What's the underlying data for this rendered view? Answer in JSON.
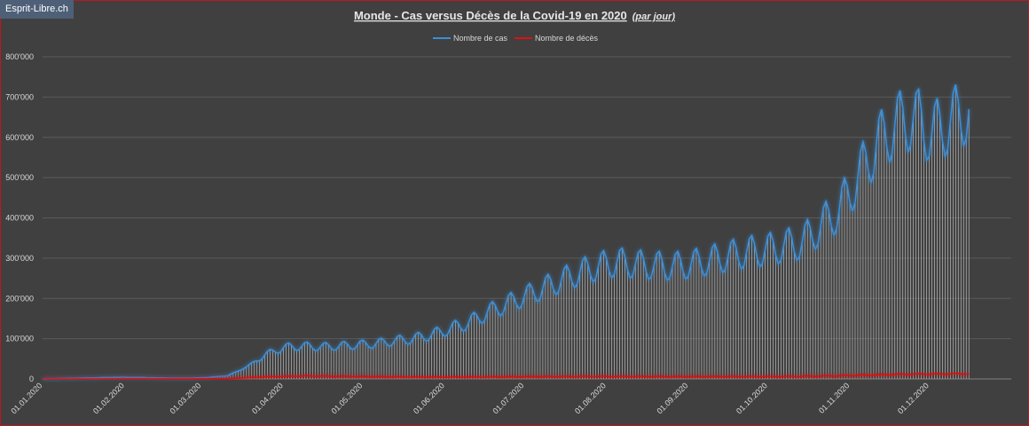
{
  "brand": {
    "label": "Esprit-Libre.ch"
  },
  "colors": {
    "background": "#404040",
    "frame": "#c0161c",
    "cases": "#3a8fd9",
    "deaths": "#e01010",
    "gridline": "#5a5a5a",
    "text": "#d9d9d9",
    "drop_lines": "#bfbfbf"
  },
  "chart_data": {
    "type": "line",
    "title": "Monde - Cas versus Décès de la Covid-19 en 2020",
    "title_note": "(par jour)",
    "xlabel": "",
    "ylabel": "",
    "ylim": [
      0,
      800000
    ],
    "y_ticks": [
      0,
      100000,
      200000,
      300000,
      400000,
      500000,
      600000,
      700000,
      800000
    ],
    "y_tick_labels": [
      "0",
      "100'000",
      "200'000",
      "300'000",
      "400'000",
      "500'000",
      "600'000",
      "700'000",
      "800'000"
    ],
    "x_ticks": [
      {
        "day": 0,
        "label": "01.01.2020"
      },
      {
        "day": 31,
        "label": "01.02.2020"
      },
      {
        "day": 60,
        "label": "01.03.2020"
      },
      {
        "day": 91,
        "label": "01.04.2020"
      },
      {
        "day": 121,
        "label": "01.05.2020"
      },
      {
        "day": 152,
        "label": "01.06.2020"
      },
      {
        "day": 182,
        "label": "01.07.2020"
      },
      {
        "day": 213,
        "label": "01.08.2020"
      },
      {
        "day": 244,
        "label": "01.09.2020"
      },
      {
        "day": 274,
        "label": "01.10.2020"
      },
      {
        "day": 305,
        "label": "01.11.2020"
      },
      {
        "day": 335,
        "label": "01.12.2020"
      }
    ],
    "x_range": [
      0,
      366
    ],
    "grid": true,
    "legend_position": "top-center",
    "series": [
      {
        "name": "Nombre de cas",
        "weekly_values": [
          [
            0,
            0
          ],
          [
            7,
            1000
          ],
          [
            14,
            2000
          ],
          [
            21,
            3000
          ],
          [
            28,
            4000
          ],
          [
            35,
            4000
          ],
          [
            42,
            3000
          ],
          [
            49,
            2000
          ],
          [
            56,
            2000
          ],
          [
            63,
            4000
          ],
          [
            70,
            8000
          ],
          [
            77,
            30000
          ],
          [
            84,
            60000
          ],
          [
            91,
            78000
          ],
          [
            98,
            82000
          ],
          [
            105,
            80000
          ],
          [
            112,
            82000
          ],
          [
            119,
            85000
          ],
          [
            126,
            88000
          ],
          [
            133,
            95000
          ],
          [
            140,
            100000
          ],
          [
            147,
            110000
          ],
          [
            154,
            125000
          ],
          [
            161,
            140000
          ],
          [
            168,
            165000
          ],
          [
            175,
            185000
          ],
          [
            182,
            205000
          ],
          [
            189,
            225000
          ],
          [
            196,
            245000
          ],
          [
            203,
            265000
          ],
          [
            210,
            280000
          ],
          [
            217,
            290000
          ],
          [
            224,
            285000
          ],
          [
            231,
            282000
          ],
          [
            238,
            280000
          ],
          [
            245,
            285000
          ],
          [
            252,
            295000
          ],
          [
            259,
            305000
          ],
          [
            266,
            315000
          ],
          [
            273,
            320000
          ],
          [
            280,
            330000
          ],
          [
            287,
            340000
          ],
          [
            294,
            380000
          ],
          [
            301,
            420000
          ],
          [
            308,
            500000
          ],
          [
            315,
            580000
          ],
          [
            322,
            630000
          ],
          [
            329,
            650000
          ],
          [
            336,
            610000
          ],
          [
            343,
            640000
          ],
          [
            350,
            670000
          ]
        ]
      },
      {
        "name": "Nombre de décès",
        "weekly_values": [
          [
            0,
            0
          ],
          [
            14,
            50
          ],
          [
            28,
            100
          ],
          [
            42,
            300
          ],
          [
            56,
            300
          ],
          [
            70,
            600
          ],
          [
            84,
            5000
          ],
          [
            98,
            7500
          ],
          [
            105,
            7000
          ],
          [
            112,
            6500
          ],
          [
            126,
            5500
          ],
          [
            140,
            4800
          ],
          [
            154,
            4500
          ],
          [
            168,
            5000
          ],
          [
            182,
            5500
          ],
          [
            196,
            6000
          ],
          [
            210,
            6200
          ],
          [
            224,
            6000
          ],
          [
            238,
            5800
          ],
          [
            252,
            5900
          ],
          [
            266,
            6000
          ],
          [
            280,
            6000
          ],
          [
            294,
            7000
          ],
          [
            308,
            9000
          ],
          [
            322,
            11500
          ],
          [
            336,
            12500
          ],
          [
            350,
            13500
          ]
        ]
      }
    ]
  }
}
